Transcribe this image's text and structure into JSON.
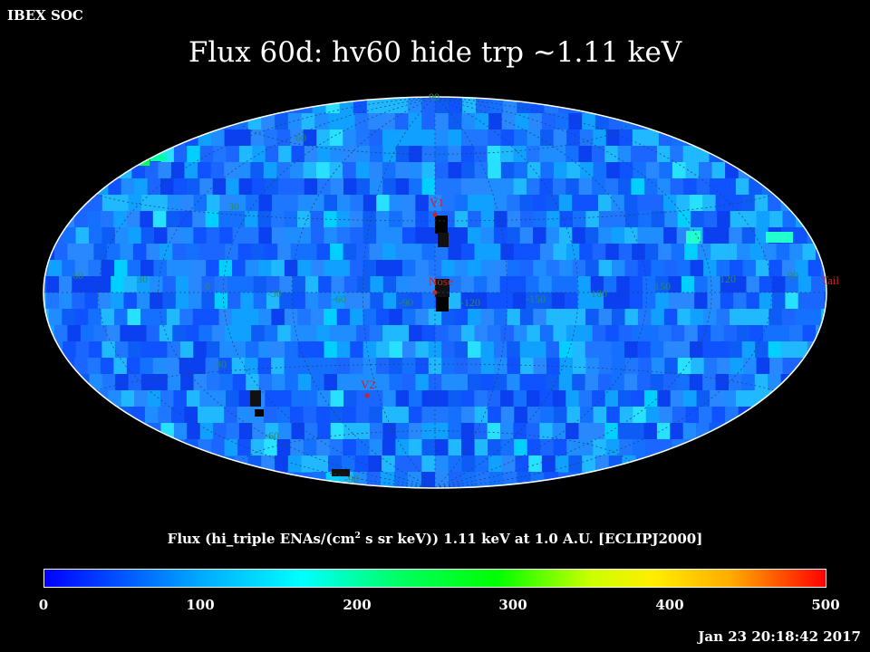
{
  "header": {
    "org": "IBEX SOC"
  },
  "title": "Flux   60d: hv60 hide trp ~1.11 keV",
  "map": {
    "longitude_labels": [
      "60",
      "30",
      "0",
      "-30",
      "-60",
      "-90",
      "-120",
      "-150",
      "180",
      "150",
      "120",
      "90"
    ],
    "latitude_labels_top": [
      "90",
      "60",
      "30"
    ],
    "latitude_labels_bottom": [
      "-30",
      "-60",
      "-90"
    ],
    "markers": {
      "v1": "V1",
      "nose": "Nose",
      "v2": "V2",
      "tail": "Tail"
    },
    "colors": {
      "label": "#2e8b57",
      "marker": "#cc2222",
      "base_blue": "#1a6cff"
    }
  },
  "colorbar": {
    "title_prefix": "Flux (hi_triple ENAs/(cm",
    "title_sup": "2",
    "title_suffix": " s sr keV))  1.11 keV at 1.0 A.U. [ECLIPJ2000]",
    "ticks": [
      "0",
      "100",
      "200",
      "300",
      "400",
      "500"
    ]
  },
  "timestamp": "Jan 23 20:18:42 2017"
}
